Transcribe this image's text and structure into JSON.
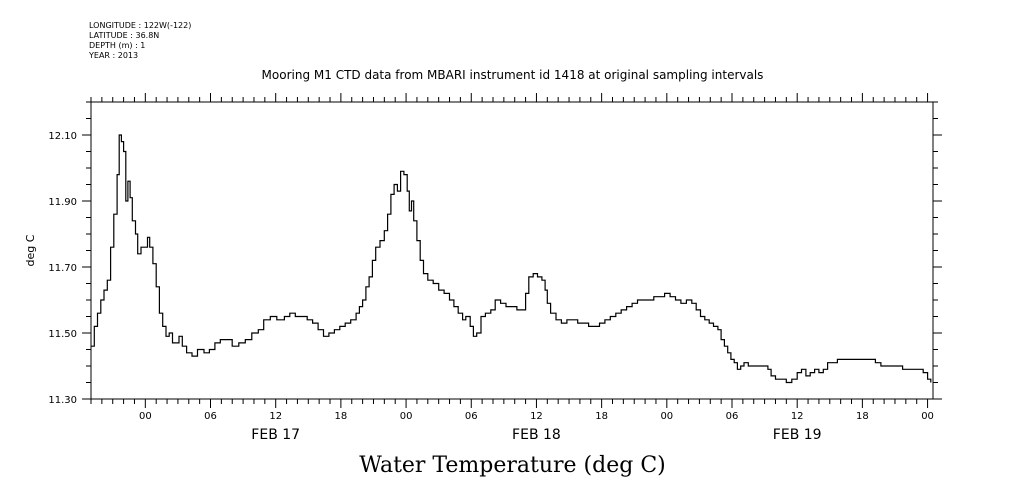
{
  "header": {
    "longitude": "LONGITUDE : 122W(-122)",
    "latitude": "LATITUDE : 36.8N",
    "depth": "DEPTH (m) : 1",
    "year": "YEAR : 2013",
    "title": "Mooring M1 CTD data from MBARI instrument id 1418 at original sampling intervals"
  },
  "footer": {
    "caption": "Water Temperature (deg C)"
  },
  "chart_data": {
    "type": "line",
    "ylabel": "deg C",
    "ylim": [
      11.3,
      12.2
    ],
    "xlim_hours": [
      -5,
      72.5
    ],
    "y_ticks": [
      "11.30",
      "11.50",
      "11.70",
      "11.90",
      "12.10"
    ],
    "y_tick_values": [
      11.3,
      11.5,
      11.7,
      11.9,
      12.1
    ],
    "x_hour_ticks": [
      {
        "h": 0,
        "label": "00"
      },
      {
        "h": 6,
        "label": "06"
      },
      {
        "h": 12,
        "label": "12"
      },
      {
        "h": 18,
        "label": "18"
      },
      {
        "h": 24,
        "label": "00"
      },
      {
        "h": 30,
        "label": "06"
      },
      {
        "h": 36,
        "label": "12"
      },
      {
        "h": 42,
        "label": "18"
      },
      {
        "h": 48,
        "label": "00"
      },
      {
        "h": 54,
        "label": "06"
      },
      {
        "h": 60,
        "label": "12"
      },
      {
        "h": 66,
        "label": "18"
      },
      {
        "h": 72,
        "label": "00"
      }
    ],
    "day_labels": [
      {
        "h": 12,
        "label": "FEB 17"
      },
      {
        "h": 36,
        "label": "FEB 18"
      },
      {
        "h": 60,
        "label": "FEB 19"
      }
    ],
    "series": [
      {
        "points": [
          [
            -5.0,
            11.46
          ],
          [
            -4.7,
            11.52
          ],
          [
            -4.4,
            11.56
          ],
          [
            -4.1,
            11.6
          ],
          [
            -3.8,
            11.63
          ],
          [
            -3.5,
            11.66
          ],
          [
            -3.2,
            11.76
          ],
          [
            -2.9,
            11.86
          ],
          [
            -2.6,
            11.98
          ],
          [
            -2.4,
            12.1
          ],
          [
            -2.2,
            12.08
          ],
          [
            -2.0,
            12.05
          ],
          [
            -1.8,
            11.9
          ],
          [
            -1.6,
            11.96
          ],
          [
            -1.4,
            11.91
          ],
          [
            -1.2,
            11.84
          ],
          [
            -0.9,
            11.8
          ],
          [
            -0.7,
            11.74
          ],
          [
            -0.4,
            11.76
          ],
          [
            -0.1,
            11.76
          ],
          [
            0.2,
            11.79
          ],
          [
            0.4,
            11.76
          ],
          [
            0.7,
            11.71
          ],
          [
            1.0,
            11.64
          ],
          [
            1.3,
            11.56
          ],
          [
            1.6,
            11.52
          ],
          [
            1.9,
            11.49
          ],
          [
            2.2,
            11.5
          ],
          [
            2.5,
            11.47
          ],
          [
            2.8,
            11.47
          ],
          [
            3.1,
            11.49
          ],
          [
            3.4,
            11.46
          ],
          [
            3.8,
            11.44
          ],
          [
            4.3,
            11.43
          ],
          [
            4.8,
            11.45
          ],
          [
            5.4,
            11.44
          ],
          [
            5.9,
            11.45
          ],
          [
            6.4,
            11.47
          ],
          [
            6.9,
            11.48
          ],
          [
            7.5,
            11.48
          ],
          [
            8.0,
            11.46
          ],
          [
            8.6,
            11.47
          ],
          [
            9.2,
            11.48
          ],
          [
            9.8,
            11.5
          ],
          [
            10.4,
            11.51
          ],
          [
            10.9,
            11.54
          ],
          [
            11.5,
            11.55
          ],
          [
            12.1,
            11.54
          ],
          [
            12.8,
            11.55
          ],
          [
            13.3,
            11.56
          ],
          [
            13.8,
            11.55
          ],
          [
            14.4,
            11.55
          ],
          [
            14.9,
            11.54
          ],
          [
            15.4,
            11.53
          ],
          [
            15.9,
            11.51
          ],
          [
            16.4,
            11.49
          ],
          [
            16.9,
            11.5
          ],
          [
            17.4,
            11.51
          ],
          [
            17.9,
            11.52
          ],
          [
            18.4,
            11.53
          ],
          [
            18.9,
            11.54
          ],
          [
            19.4,
            11.56
          ],
          [
            19.7,
            11.58
          ],
          [
            20.0,
            11.6
          ],
          [
            20.3,
            11.64
          ],
          [
            20.6,
            11.67
          ],
          [
            20.9,
            11.72
          ],
          [
            21.2,
            11.76
          ],
          [
            21.6,
            11.78
          ],
          [
            22.0,
            11.81
          ],
          [
            22.3,
            11.86
          ],
          [
            22.6,
            11.92
          ],
          [
            22.9,
            11.95
          ],
          [
            23.2,
            11.93
          ],
          [
            23.5,
            11.99
          ],
          [
            23.8,
            11.98
          ],
          [
            24.1,
            11.93
          ],
          [
            24.3,
            11.87
          ],
          [
            24.5,
            11.9
          ],
          [
            24.7,
            11.84
          ],
          [
            25.0,
            11.78
          ],
          [
            25.3,
            11.72
          ],
          [
            25.6,
            11.68
          ],
          [
            26.0,
            11.66
          ],
          [
            26.5,
            11.65
          ],
          [
            27.0,
            11.63
          ],
          [
            27.5,
            11.62
          ],
          [
            28.0,
            11.6
          ],
          [
            28.4,
            11.58
          ],
          [
            28.8,
            11.56
          ],
          [
            29.2,
            11.54
          ],
          [
            29.5,
            11.55
          ],
          [
            29.9,
            11.52
          ],
          [
            30.2,
            11.49
          ],
          [
            30.5,
            11.5
          ],
          [
            30.9,
            11.55
          ],
          [
            31.3,
            11.56
          ],
          [
            31.8,
            11.57
          ],
          [
            32.2,
            11.6
          ],
          [
            32.7,
            11.59
          ],
          [
            33.2,
            11.58
          ],
          [
            33.7,
            11.58
          ],
          [
            34.2,
            11.57
          ],
          [
            34.6,
            11.57
          ],
          [
            35.0,
            11.62
          ],
          [
            35.3,
            11.67
          ],
          [
            35.7,
            11.68
          ],
          [
            36.1,
            11.67
          ],
          [
            36.5,
            11.66
          ],
          [
            36.8,
            11.63
          ],
          [
            37.0,
            11.59
          ],
          [
            37.3,
            11.56
          ],
          [
            37.8,
            11.54
          ],
          [
            38.3,
            11.53
          ],
          [
            38.8,
            11.54
          ],
          [
            39.3,
            11.54
          ],
          [
            39.8,
            11.53
          ],
          [
            40.3,
            11.53
          ],
          [
            40.8,
            11.52
          ],
          [
            41.3,
            11.52
          ],
          [
            41.8,
            11.53
          ],
          [
            42.3,
            11.54
          ],
          [
            42.8,
            11.55
          ],
          [
            43.3,
            11.56
          ],
          [
            43.8,
            11.57
          ],
          [
            44.3,
            11.58
          ],
          [
            44.8,
            11.59
          ],
          [
            45.3,
            11.6
          ],
          [
            45.8,
            11.6
          ],
          [
            46.3,
            11.6
          ],
          [
            46.8,
            11.61
          ],
          [
            47.3,
            11.61
          ],
          [
            47.8,
            11.62
          ],
          [
            48.3,
            11.61
          ],
          [
            48.8,
            11.6
          ],
          [
            49.3,
            11.59
          ],
          [
            49.8,
            11.6
          ],
          [
            50.3,
            11.59
          ],
          [
            50.7,
            11.57
          ],
          [
            51.1,
            11.55
          ],
          [
            51.5,
            11.54
          ],
          [
            51.9,
            11.53
          ],
          [
            52.3,
            11.52
          ],
          [
            52.7,
            11.51
          ],
          [
            53.0,
            11.48
          ],
          [
            53.3,
            11.46
          ],
          [
            53.6,
            11.44
          ],
          [
            53.9,
            11.42
          ],
          [
            54.2,
            11.41
          ],
          [
            54.5,
            11.39
          ],
          [
            54.8,
            11.4
          ],
          [
            55.1,
            11.41
          ],
          [
            55.5,
            11.4
          ],
          [
            56.0,
            11.4
          ],
          [
            56.5,
            11.4
          ],
          [
            57.0,
            11.4
          ],
          [
            57.3,
            11.39
          ],
          [
            57.6,
            11.37
          ],
          [
            58.0,
            11.36
          ],
          [
            58.5,
            11.36
          ],
          [
            59.0,
            11.35
          ],
          [
            59.5,
            11.36
          ],
          [
            60.0,
            11.38
          ],
          [
            60.4,
            11.39
          ],
          [
            60.8,
            11.37
          ],
          [
            61.2,
            11.38
          ],
          [
            61.6,
            11.39
          ],
          [
            62.0,
            11.38
          ],
          [
            62.4,
            11.39
          ],
          [
            62.8,
            11.41
          ],
          [
            63.2,
            11.41
          ],
          [
            63.7,
            11.42
          ],
          [
            64.2,
            11.42
          ],
          [
            64.7,
            11.42
          ],
          [
            65.2,
            11.42
          ],
          [
            65.7,
            11.42
          ],
          [
            66.2,
            11.42
          ],
          [
            66.7,
            11.42
          ],
          [
            67.2,
            11.41
          ],
          [
            67.7,
            11.4
          ],
          [
            68.2,
            11.4
          ],
          [
            68.7,
            11.4
          ],
          [
            69.2,
            11.4
          ],
          [
            69.7,
            11.39
          ],
          [
            70.2,
            11.39
          ],
          [
            70.7,
            11.39
          ],
          [
            71.2,
            11.39
          ],
          [
            71.6,
            11.38
          ],
          [
            72.0,
            11.36
          ],
          [
            72.3,
            11.35
          ]
        ]
      }
    ]
  }
}
